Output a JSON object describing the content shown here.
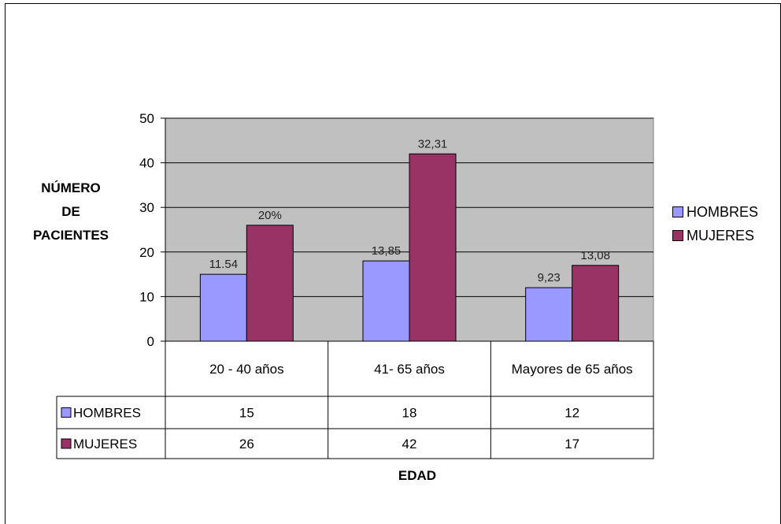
{
  "chart_data": {
    "type": "bar",
    "categories": [
      "20 - 40 años",
      "41- 65 años",
      "Mayores de 65 años"
    ],
    "series": [
      {
        "name": "HOMBRES",
        "values": [
          15,
          18,
          12
        ],
        "labels": [
          "11.54",
          "13,85",
          "9,23"
        ],
        "color": "#9999ff"
      },
      {
        "name": "MUJERES",
        "values": [
          26,
          42,
          17
        ],
        "labels": [
          "20%",
          "32,31",
          "13,08"
        ],
        "color": "#993366"
      }
    ],
    "y_ticks": [
      "0",
      "10",
      "20",
      "30",
      "40",
      "50"
    ],
    "ylim": [
      0,
      50
    ],
    "ylabel_lines": [
      "NÚMERO",
      "DE",
      "PACIENTES"
    ],
    "xlabel": "EDAD",
    "legend_position": "right",
    "grid": true,
    "plot_background": "#c0c0c0",
    "data_table": true
  }
}
